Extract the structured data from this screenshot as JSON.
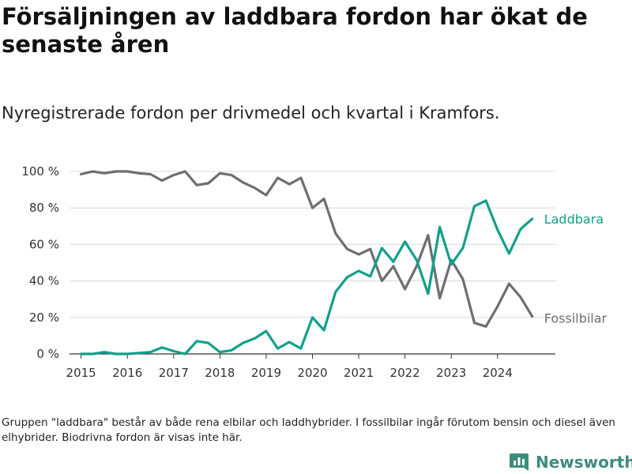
{
  "header": {
    "title": "Försäljningen av laddbara fordon har ökat de senaste åren",
    "subtitle": "Nyregistrerade fordon per drivmedel och kvartal i Kramfors."
  },
  "footer": {
    "note": "Gruppen \"laddbara\" består av både rena elbilar och laddhybrider. I fossilbilar ingår förutom bensin och diesel även elhybrider. Biodrivna fordon är visas inte här.",
    "brand": "Newsworthy",
    "brand_icon": "bar-chart-logo-icon"
  },
  "colors": {
    "laddbara": "#12a08a",
    "fossilbilar": "#6e6e73",
    "grid": "#d9d9d9",
    "axis": "#333333",
    "brand": "#3d8c7d"
  },
  "chart_data": {
    "type": "line",
    "title": "Försäljningen av laddbara fordon har ökat de senaste åren",
    "subtitle": "Nyregistrerade fordon per drivmedel och kvartal i Kramfors.",
    "xlabel": "",
    "ylabel": "",
    "xlim": [
      2014.75,
      2025.25
    ],
    "ylim": [
      0,
      100
    ],
    "x_ticks": [
      2015,
      2016,
      2017,
      2018,
      2019,
      2020,
      2021,
      2022,
      2023,
      2024
    ],
    "y_ticks": [
      0,
      20,
      40,
      60,
      80,
      100
    ],
    "y_tick_labels": [
      "0 %",
      "20 %",
      "40 %",
      "60 %",
      "80 %",
      "100 %"
    ],
    "grid": true,
    "x": [
      2015,
      2015.25,
      2015.5,
      2015.75,
      2016,
      2016.25,
      2016.5,
      2016.75,
      2017,
      2017.25,
      2017.5,
      2017.75,
      2018,
      2018.25,
      2018.5,
      2018.75,
      2019,
      2019.25,
      2019.5,
      2019.75,
      2020,
      2020.25,
      2020.5,
      2020.75,
      2021,
      2021.25,
      2021.5,
      2021.75,
      2022,
      2022.25,
      2022.5,
      2022.75,
      2023,
      2023.25,
      2023.5,
      2023.75,
      2024,
      2024.25,
      2024.5,
      2024.75
    ],
    "series": [
      {
        "name": "Laddbara",
        "values": [
          0,
          0,
          1,
          0,
          0,
          0.5,
          1,
          3.5,
          1.5,
          0,
          7,
          6,
          1,
          2,
          6,
          8.5,
          12.5,
          3,
          6.5,
          3,
          20,
          13,
          34,
          42,
          45.5,
          42.5,
          58,
          50.5,
          61.5,
          51.5,
          33,
          69.5,
          49,
          58,
          81,
          84,
          68,
          55,
          68.5,
          74
        ]
      },
      {
        "name": "Fossilbilar",
        "values": [
          98.5,
          100,
          99,
          100,
          100,
          99,
          98.5,
          95,
          98,
          100,
          92.5,
          93.5,
          99,
          98,
          94,
          91,
          87,
          96.5,
          93,
          96.5,
          80,
          85,
          66,
          57.5,
          54.5,
          57.5,
          40,
          48,
          35.5,
          48,
          65,
          30.5,
          51.5,
          41,
          17,
          15,
          26,
          38.5,
          31,
          20.5
        ]
      }
    ],
    "legend": "inline-right"
  }
}
